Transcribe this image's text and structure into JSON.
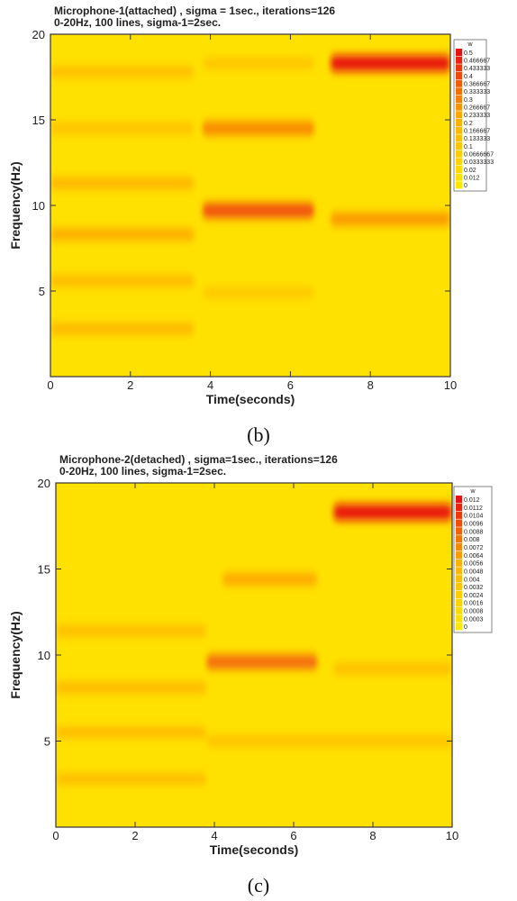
{
  "chart_data": [
    {
      "type": "heatmap",
      "panel": "(b)",
      "title": "Microphone-1(attached) , sigma = 1sec., iterations=126",
      "subtitle": "0-20Hz, 100 lines, sigma-1=2sec.",
      "xlabel": "Time(seconds)",
      "ylabel": "Frequency(Hz)",
      "xlim": [
        0,
        10
      ],
      "ylim": [
        0,
        20
      ],
      "xticks": [
        "0",
        "2",
        "4",
        "6",
        "8",
        "10"
      ],
      "yticks": [
        "5",
        "10",
        "15",
        "20"
      ],
      "legend_title": "w",
      "legend_placement": "top-right",
      "colorbar_levels": [
        "0.5",
        "0.466667",
        "0.433333",
        "0.4",
        "0.366667",
        "0.333333",
        "0.3",
        "0.266667",
        "0.233333",
        "0.2",
        "0.166667",
        "0.133333",
        "0.1",
        "0.0666667",
        "0.0333333",
        "0.02",
        "0.012",
        "0"
      ],
      "colors": {
        "low": "#ffe800",
        "mid": "#ffb000",
        "high": "#e81010"
      },
      "bands": [
        {
          "t0": 0,
          "t1": 3.6,
          "f": 17.8,
          "w": 0.12
        },
        {
          "t0": 0,
          "t1": 3.6,
          "f": 14.5,
          "w": 0.1
        },
        {
          "t0": 0,
          "t1": 3.6,
          "f": 11.3,
          "w": 0.17
        },
        {
          "t0": 0,
          "t1": 3.6,
          "f": 8.3,
          "w": 0.19
        },
        {
          "t0": 0,
          "t1": 3.6,
          "f": 5.6,
          "w": 0.14
        },
        {
          "t0": 0,
          "t1": 3.6,
          "f": 2.8,
          "w": 0.16
        },
        {
          "t0": 3.8,
          "t1": 6.6,
          "f": 14.5,
          "w": 0.3
        },
        {
          "t0": 3.8,
          "t1": 6.6,
          "f": 9.7,
          "w": 0.4
        },
        {
          "t0": 3.8,
          "t1": 6.6,
          "f": 18.3,
          "w": 0.08
        },
        {
          "t0": 3.8,
          "t1": 6.6,
          "f": 4.9,
          "w": 0.06
        },
        {
          "t0": 7.0,
          "t1": 10,
          "f": 18.3,
          "w": 0.5
        },
        {
          "t0": 7.0,
          "t1": 10,
          "f": 9.2,
          "w": 0.24
        }
      ]
    },
    {
      "type": "heatmap",
      "panel": "(c)",
      "title": "Microphone-2(detached) , sigma=1sec., iterations=126",
      "subtitle": "0-20Hz, 100 lines, sigma-1=2sec.",
      "xlabel": "Time(seconds)",
      "ylabel": "Frequency(Hz)",
      "xlim": [
        0,
        10
      ],
      "ylim": [
        0,
        20
      ],
      "xticks": [
        "0",
        "2",
        "4",
        "6",
        "8",
        "10"
      ],
      "yticks": [
        "5",
        "10",
        "15",
        "20"
      ],
      "legend_title": "w",
      "legend_placement": "top-right",
      "colorbar_levels": [
        "0.012",
        "0.0112",
        "0.0104",
        "0.0096",
        "0.0088",
        "0.008",
        "0.0072",
        "0.0064",
        "0.0056",
        "0.0048",
        "0.004",
        "0.0032",
        "0.0024",
        "0.0016",
        "0.0008",
        "0.0003",
        "0"
      ],
      "colors": {
        "low": "#ffe800",
        "mid": "#ffb000",
        "high": "#e81010"
      },
      "bands": [
        {
          "t0": 7.0,
          "t1": 10,
          "f": 18.3,
          "w": 0.012
        },
        {
          "t0": 3.8,
          "t1": 6.6,
          "f": 9.6,
          "w": 0.0085
        },
        {
          "t0": 4.2,
          "t1": 6.6,
          "f": 14.4,
          "w": 0.0048
        },
        {
          "t0": 0,
          "t1": 3.8,
          "f": 8.1,
          "w": 0.0035
        },
        {
          "t0": 0,
          "t1": 3.8,
          "f": 5.5,
          "w": 0.0032
        },
        {
          "t0": 0,
          "t1": 3.8,
          "f": 11.4,
          "w": 0.003
        },
        {
          "t0": 0,
          "t1": 3.8,
          "f": 2.8,
          "w": 0.003
        },
        {
          "t0": 3.8,
          "t1": 10,
          "f": 5.0,
          "w": 0.0024
        },
        {
          "t0": 7.0,
          "t1": 10,
          "f": 9.2,
          "w": 0.0028
        }
      ]
    }
  ],
  "captions": {
    "b": "(b)",
    "c": "(c)"
  }
}
